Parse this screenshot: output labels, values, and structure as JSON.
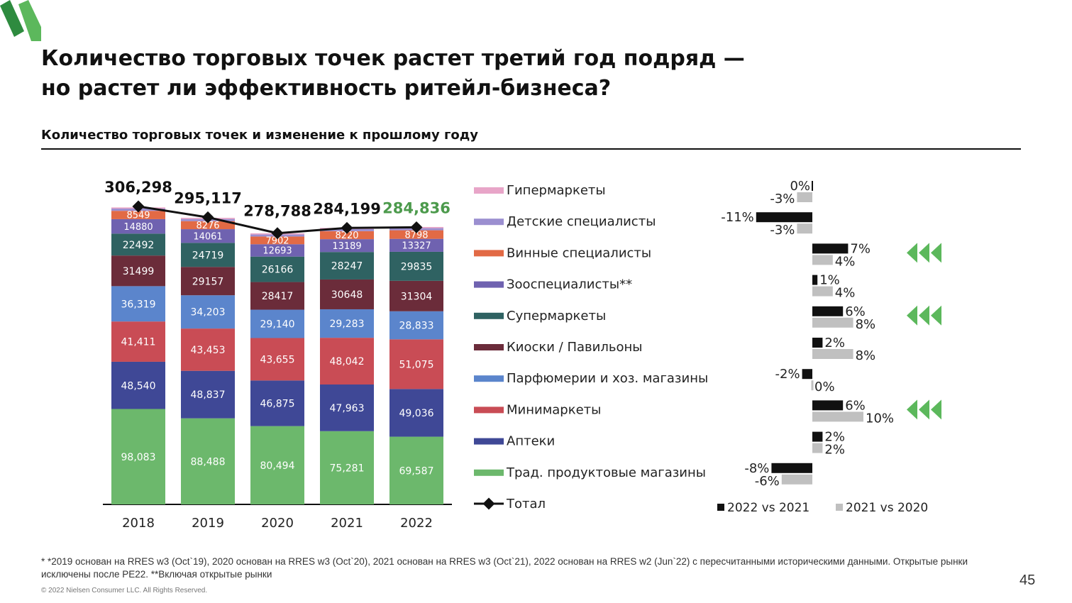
{
  "title_line1": "Количество торговых точек растет третий год подряд —",
  "title_line2": "но растет ли эффективность ритейл-бизнеса?",
  "subtitle": "Количество торговых точек и изменение к прошлому году",
  "footnote": "* *2019 основан на RRES w3 (Oct`19), 2020 основан на RRES w3 (Oct`20), 2021 основан на RRES w3 (Oct`21), 2022 основан на RRES w2 (Jun`22) с пересчитанными историческими данными. Открытые рынки исключены  после PE22. **Включая открытые рынки",
  "copyright": "© 2022 Nielsen Consumer LLC. All Rights Reserved.",
  "page_number": "45",
  "chart_data": {
    "type": "bar",
    "stacked": true,
    "categories": [
      "2018",
      "2019",
      "2020",
      "2021",
      "2022"
    ],
    "series": [
      {
        "name": "Трад. продуктовые магазины",
        "color": "#6cb86c",
        "values": [
          98083,
          88488,
          80494,
          75281,
          69587
        ],
        "labels": [
          "98,083",
          "88,488",
          "80,494",
          "75,281",
          "69,587"
        ]
      },
      {
        "name": "Аптеки",
        "color": "#3f4896",
        "values": [
          48540,
          48837,
          46875,
          47963,
          49036
        ],
        "labels": [
          "48,540",
          "48,837",
          "46,875",
          "47,963",
          "49,036"
        ]
      },
      {
        "name": "Минимаркеты",
        "color": "#c94c55",
        "values": [
          41411,
          43453,
          43655,
          48042,
          51075
        ],
        "labels": [
          "41,411",
          "43,453",
          "43,655",
          "48,042",
          "51,075"
        ]
      },
      {
        "name": "Парфюмерии и хоз. магазины",
        "color": "#5b85cc",
        "values": [
          36319,
          34203,
          29140,
          29283,
          28833
        ],
        "labels": [
          "36,319",
          "34,203",
          "29,140",
          "29,283",
          "28,833"
        ]
      },
      {
        "name": "Киоски / Павильоны",
        "color": "#6b2c3a",
        "values": [
          31499,
          29157,
          28417,
          30648,
          31304
        ],
        "labels": [
          "31499",
          "29157",
          "28417",
          "30648",
          "31304"
        ]
      },
      {
        "name": "Супермаркеты",
        "color": "#2f6262",
        "values": [
          22492,
          24719,
          26166,
          28247,
          29835
        ],
        "labels": [
          "22492",
          "24719",
          "26166",
          "28247",
          "29835"
        ]
      },
      {
        "name": "Зооспециалисты**",
        "color": "#6f62b0",
        "values": [
          14880,
          14061,
          12693,
          13189,
          13327
        ],
        "labels": [
          "14880",
          "14061",
          "12693",
          "13189",
          "13327"
        ]
      },
      {
        "name": "Винные специалисты",
        "color": "#e26a45",
        "values": [
          8549,
          8276,
          7902,
          8220,
          8798
        ],
        "labels": [
          "8549",
          "8276",
          "7902",
          "8220",
          "8798"
        ]
      },
      {
        "name": "Детские специалисты",
        "color": "#9b8fd0",
        "values": [
          2300,
          2200,
          2100,
          2150,
          2200
        ],
        "labels": [
          "",
          "",
          "",
          "",
          ""
        ]
      },
      {
        "name": "Гипермаркеты",
        "color": "#e8a5c8",
        "values": [
          1200,
          1200,
          1200,
          1200,
          1200
        ],
        "labels": [
          "",
          "",
          "",
          "",
          ""
        ]
      }
    ],
    "total": {
      "name": "Тотал",
      "values": [
        306298,
        295117,
        278788,
        284199,
        284836
      ],
      "labels": [
        "306,298",
        "295,117",
        "278,788",
        "284,199",
        "284,836"
      ],
      "last_label_color": "#4c9a4c"
    },
    "change_chart": {
      "type": "bar",
      "orientation": "horizontal",
      "series_names": [
        "2022 vs 2021",
        "2021 vs 2020"
      ],
      "series_colors": [
        "#111111",
        "#c0c0c0"
      ],
      "rows": [
        {
          "category": "Гипермаркеты",
          "values": [
            0,
            -3
          ],
          "labels": [
            "0%",
            "-3%"
          ],
          "arrows": false
        },
        {
          "category": "Детские специалисты",
          "values": [
            -11,
            -3
          ],
          "labels": [
            "-11%",
            "-3%"
          ],
          "arrows": false
        },
        {
          "category": "Винные специалисты",
          "values": [
            7,
            4
          ],
          "labels": [
            "7%",
            "4%"
          ],
          "arrows": true
        },
        {
          "category": "Зооспециалисты**",
          "values": [
            1,
            4
          ],
          "labels": [
            "1%",
            "4%"
          ],
          "arrows": false
        },
        {
          "category": "Супермаркеты",
          "values": [
            6,
            8
          ],
          "labels": [
            "6%",
            "8%"
          ],
          "arrows": true
        },
        {
          "category": "Киоски / Павильоны",
          "values": [
            2,
            8
          ],
          "labels": [
            "2%",
            "8%"
          ],
          "arrows": false
        },
        {
          "category": "Парфюмерии и хоз. магазины",
          "values": [
            -2,
            0
          ],
          "labels": [
            "-2%",
            "0%"
          ],
          "arrows": false
        },
        {
          "category": "Минимаркеты",
          "values": [
            6,
            10
          ],
          "labels": [
            "6%",
            "10%"
          ],
          "arrows": true
        },
        {
          "category": "Аптеки",
          "values": [
            2,
            2
          ],
          "labels": [
            "2%",
            "2%"
          ],
          "arrows": false
        },
        {
          "category": "Трад. продуктовые магазины",
          "values": [
            -8,
            -6
          ],
          "labels": [
            "-8%",
            "-6%"
          ],
          "arrows": false
        }
      ],
      "arrow_color": "#5cb85c"
    }
  }
}
